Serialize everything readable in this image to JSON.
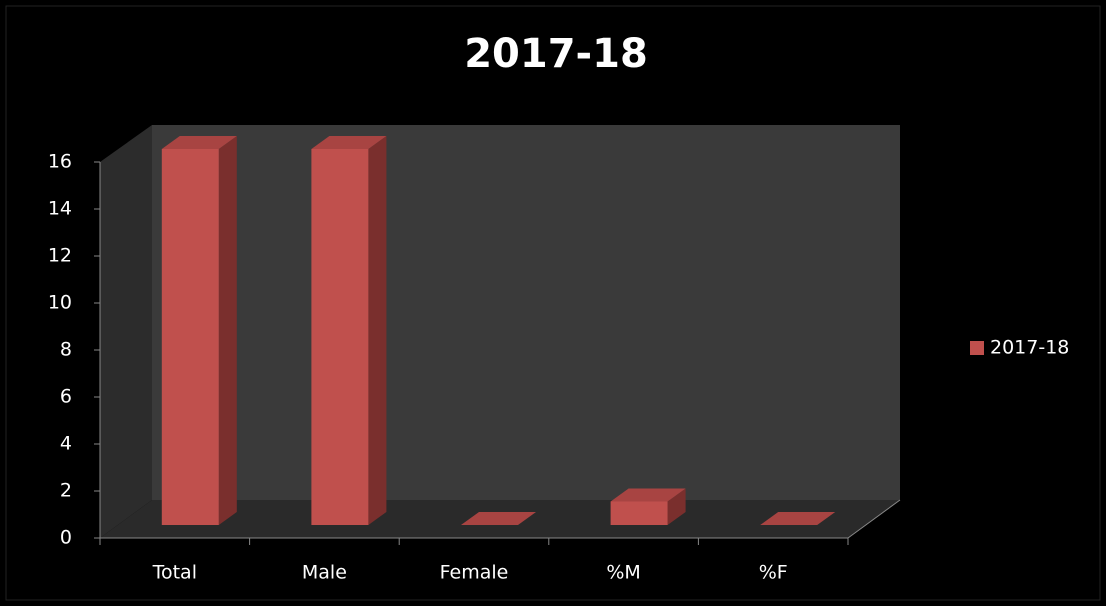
{
  "chart_data": {
    "type": "bar3d",
    "title": "2017-18",
    "categories": [
      "Total",
      "Male",
      "Female",
      "%M",
      "%F"
    ],
    "series": [
      {
        "name": "2017-18",
        "color": "#c0504d",
        "values": [
          16,
          16,
          0,
          1,
          0
        ]
      }
    ],
    "ylim": [
      0,
      16
    ],
    "yticks": [
      0,
      2,
      4,
      6,
      8,
      10,
      12,
      14,
      16
    ],
    "legend": "right"
  }
}
